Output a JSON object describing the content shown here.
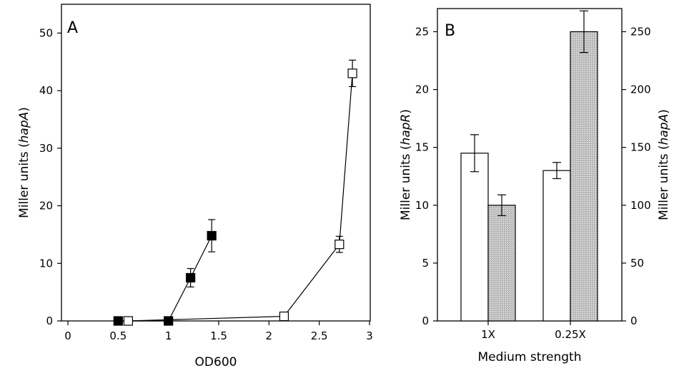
{
  "chart_data": [
    {
      "type": "scatter",
      "panel_label": "A",
      "xlabel": "OD600",
      "ylabel": "Miller units (hapA)",
      "xlim": [
        0,
        3
      ],
      "ylim": [
        0,
        55
      ],
      "xticks": [
        "0",
        "0.5",
        "1",
        "1.5",
        "2",
        "2.5",
        "3"
      ],
      "yticks": [
        "0",
        "10",
        "20",
        "30",
        "40",
        "50"
      ],
      "series": [
        {
          "marker": "filled-square",
          "color": "#000000",
          "points": [
            {
              "x": 0.5,
              "y": 0,
              "err": 0
            },
            {
              "x": 1.0,
              "y": 0,
              "err": 0
            },
            {
              "x": 1.22,
              "y": 7.5,
              "err": 1.6
            },
            {
              "x": 1.43,
              "y": 14.8,
              "err": 2.8
            }
          ]
        },
        {
          "marker": "open-square",
          "color": "#ffffff",
          "points": [
            {
              "x": 0.6,
              "y": 0,
              "err": 0
            },
            {
              "x": 2.15,
              "y": 0.8,
              "err": 0
            },
            {
              "x": 2.7,
              "y": 13.3,
              "err": 1.4
            },
            {
              "x": 2.83,
              "y": 43,
              "err": 2.3
            }
          ]
        }
      ]
    },
    {
      "type": "bar",
      "panel_label": "B",
      "xlabel": "Medium strength",
      "ylabel": "Miller units (hapR)",
      "ylabel_right": "Miller units (hapA)",
      "categories": [
        "1X",
        "0.25X"
      ],
      "ylim": [
        0,
        27
      ],
      "ylim_right": [
        0,
        270
      ],
      "yticks": [
        "0",
        "5",
        "10",
        "15",
        "20",
        "25"
      ],
      "yticks_right": [
        "0",
        "50",
        "100",
        "150",
        "200",
        "250"
      ],
      "series": [
        {
          "axis": "left",
          "color": "#ffffff",
          "values": [
            14.5,
            13
          ],
          "errors": [
            1.6,
            0.7
          ]
        },
        {
          "axis": "right",
          "color": "#c4c4c4",
          "values": [
            100,
            250
          ],
          "errors": [
            9,
            18
          ]
        }
      ]
    }
  ]
}
